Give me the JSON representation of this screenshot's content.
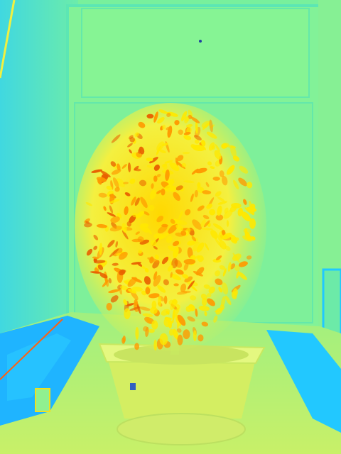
{
  "scene": {
    "subject": "potted-bush-plant",
    "palette": {
      "wall": "#72f0a0",
      "wall_light": "#8cf590",
      "cabinet": "#5de8b0",
      "floor": "#b8f070",
      "shadow_blue": "#1ab0ff",
      "cyan": "#20e0f0",
      "foliage_yellow": "#ffe800",
      "foliage_orange": "#ff9a00",
      "foliage_deep": "#e86000",
      "pot": "#d8f060",
      "pot_rim": "#e8f880"
    }
  }
}
